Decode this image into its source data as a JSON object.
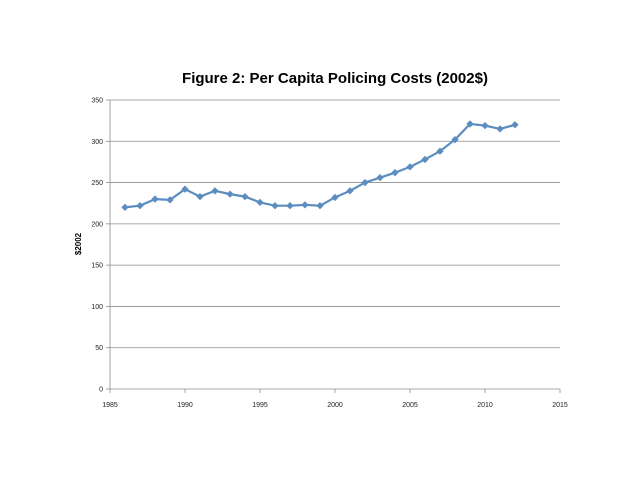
{
  "chart_data": {
    "type": "line",
    "title": "Figure 2: Per Capita Policing Costs (2002$)",
    "xlabel": "",
    "ylabel": "$2002",
    "xlim": [
      1985,
      2015
    ],
    "ylim": [
      0,
      350
    ],
    "x_ticks": [
      1985,
      1990,
      1995,
      2000,
      2005,
      2010,
      2015
    ],
    "y_ticks": [
      0,
      50,
      100,
      150,
      200,
      250,
      300,
      350
    ],
    "grid": "horizontal",
    "legend": "none",
    "series": [
      {
        "name": "Per Capita Policing Costs",
        "color": "#5b8dbf",
        "marker": "diamond",
        "x": [
          1986,
          1987,
          1988,
          1989,
          1990,
          1991,
          1992,
          1993,
          1994,
          1995,
          1996,
          1997,
          1998,
          1999,
          2000,
          2001,
          2002,
          2003,
          2004,
          2005,
          2006,
          2007,
          2008,
          2009,
          2010,
          2011,
          2012
        ],
        "values": [
          220,
          222,
          230,
          229,
          242,
          233,
          240,
          236,
          233,
          226,
          222,
          222,
          223,
          222,
          232,
          240,
          250,
          256,
          262,
          269,
          278,
          288,
          302,
          321,
          319,
          315,
          320
        ]
      }
    ]
  }
}
